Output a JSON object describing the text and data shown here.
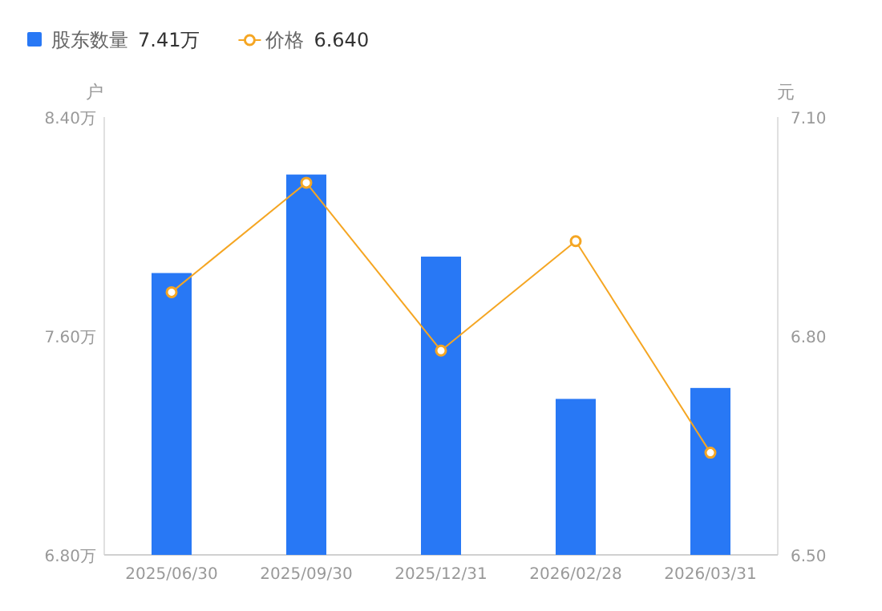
{
  "chart_data": {
    "type": "bar",
    "categories": [
      "2025/06/30",
      "2025/09/30",
      "2025/12/31",
      "2026/02/28",
      "2026/03/31"
    ],
    "series": [
      {
        "name": "股东数量",
        "color": "#2878f5",
        "values": [
          7.83,
          8.19,
          7.89,
          7.37,
          7.41
        ]
      },
      {
        "name": "价格",
        "type": "line",
        "axis": "y2",
        "color": "#f5a623",
        "values": [
          6.86,
          7.01,
          6.78,
          6.93,
          6.64
        ],
        "marker": "circle"
      }
    ],
    "annotations": [
      "7.41万",
      "6.640"
    ],
    "ylabel": "户",
    "y2label": "元",
    "ylim": [
      6.8,
      8.4
    ],
    "yticks": [
      {
        "value": 6.8,
        "label": "6.80万"
      },
      {
        "value": 7.6,
        "label": "7.60万"
      },
      {
        "value": 8.4,
        "label": "8.40万"
      }
    ],
    "y2lim": [
      6.5,
      7.1
    ],
    "y2ticks": [
      {
        "value": 6.5,
        "label": "6.50"
      },
      {
        "value": 6.8,
        "label": "6.80"
      },
      {
        "value": 7.1,
        "label": "7.10"
      }
    ],
    "legend": "top left"
  }
}
